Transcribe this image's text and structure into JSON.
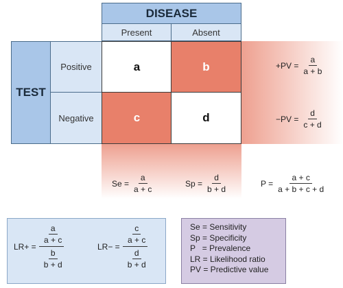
{
  "header": {
    "disease": "DISEASE",
    "test": "TEST"
  },
  "columns": {
    "present": "Present",
    "absent": "Absent"
  },
  "rows": {
    "positive": "Positive",
    "negative": "Negative"
  },
  "cells": {
    "a": "a",
    "b": "b",
    "c": "c",
    "d": "d"
  },
  "formulas": {
    "ppv": {
      "label": "+PV =",
      "num": "a",
      "den": "a + b"
    },
    "npv": {
      "label": "−PV =",
      "num": "d",
      "den": "c + d"
    },
    "se": {
      "label": "Se =",
      "num": "a",
      "den": "a + c"
    },
    "sp": {
      "label": "Sp =",
      "num": "d",
      "den": "b + d"
    },
    "prev": {
      "label": "P =",
      "num": "a + c",
      "den": "a + b + c + d"
    }
  },
  "lr": {
    "plus": {
      "label": "LR+ =",
      "top_num": "a",
      "top_den": "a + c",
      "bot_num": "b",
      "bot_den": "b + d"
    },
    "minus": {
      "label": "LR− =",
      "top_num": "c",
      "top_den": "a + c",
      "bot_num": "d",
      "bot_den": "b + d"
    }
  },
  "legend": [
    "Se = Sensitivity",
    "Sp = Specificity",
    "P   = Prevalence",
    "LR = Likelihood ratio",
    "PV = Predictive value"
  ],
  "colors": {
    "header_blue": "#a9c6e8",
    "light_blue": "#d9e6f5",
    "salmon": "#e8806a",
    "legend_purple": "#d5cbe3"
  }
}
